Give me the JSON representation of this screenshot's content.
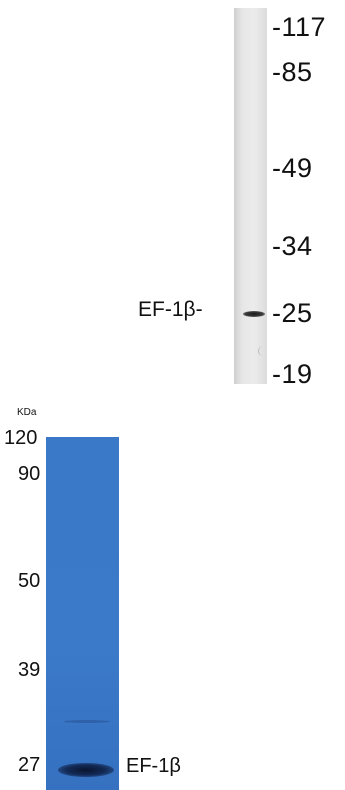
{
  "western_blot": {
    "markers": [
      "-117",
      "-85",
      "-49",
      "-34",
      "-25",
      "-19"
    ],
    "target_label": "EF-1β-"
  },
  "gel": {
    "unit": "KDa",
    "markers": [
      "120",
      "90",
      "50",
      "39",
      "27"
    ],
    "target_label": "EF-1β"
  }
}
